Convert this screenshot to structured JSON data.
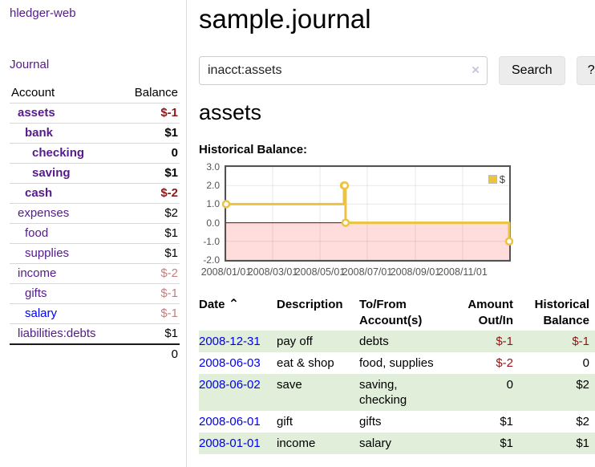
{
  "sidebar": {
    "brand": "hledger-web",
    "journal_link": "Journal",
    "accounts": {
      "col_account": "Account",
      "col_balance": "Balance",
      "rows": [
        {
          "name": "assets",
          "balance": "$-1",
          "level": 0,
          "bold": true,
          "neg": "strong"
        },
        {
          "name": "bank",
          "balance": "$1",
          "level": 1,
          "bold": true
        },
        {
          "name": "checking",
          "balance": "0",
          "level": 2,
          "bold": true
        },
        {
          "name": "saving",
          "balance": "$1",
          "level": 2,
          "bold": true
        },
        {
          "name": "cash",
          "balance": "$-2",
          "level": 1,
          "bold": true,
          "neg": "strong"
        },
        {
          "name": "expenses",
          "balance": "$2",
          "level": 0
        },
        {
          "name": "food",
          "balance": "$1",
          "level": 1
        },
        {
          "name": "supplies",
          "balance": "$1",
          "level": 1
        },
        {
          "name": "income",
          "balance": "$-2",
          "level": 0,
          "neg": "soft"
        },
        {
          "name": "gifts",
          "balance": "$-1",
          "level": 1,
          "neg": "soft"
        },
        {
          "name": "salary",
          "balance": "$-1",
          "level": 1,
          "neg": "soft",
          "link_state": "unvisited"
        },
        {
          "name": "liabilities:debts",
          "balance": "$1",
          "level": 0
        }
      ],
      "total": "0"
    }
  },
  "header": {
    "title": "sample.journal"
  },
  "search": {
    "value": "inacct:assets",
    "clear_icon": "×",
    "search_button": "Search",
    "help_button": "?"
  },
  "page": {
    "account_heading": "assets",
    "chart_title": "Historical Balance:"
  },
  "chart_data": {
    "type": "line",
    "style": "step",
    "title": "Historical Balance",
    "x_range": [
      "2008-01-01",
      "2008-12-31"
    ],
    "ylim": [
      -2.0,
      3.0
    ],
    "yticks": [
      3.0,
      2.0,
      1.0,
      0.0,
      -1.0,
      -2.0
    ],
    "xticks": [
      {
        "value": "2008-01-01",
        "label": "2008/01/01"
      },
      {
        "value": "2008-03-01",
        "label": "2008/03/01"
      },
      {
        "value": "2008-05-01",
        "label": "2008/05/01"
      },
      {
        "value": "2008-07-01",
        "label": "2008/07/01"
      },
      {
        "value": "2008-09-01",
        "label": "2008/09/01"
      },
      {
        "value": "2008-11-01",
        "label": "2008/11/01"
      }
    ],
    "series": [
      {
        "name": "$",
        "color": "#edc240",
        "points": [
          {
            "x": "2008-01-01",
            "y": 1.0
          },
          {
            "x": "2008-06-01",
            "y": 2.0
          },
          {
            "x": "2008-06-02",
            "y": 2.0
          },
          {
            "x": "2008-06-03",
            "y": 0.0
          },
          {
            "x": "2008-12-31",
            "y": -1.0
          }
        ]
      }
    ],
    "legend": {
      "label": "$",
      "position": "top-right"
    },
    "grid": true,
    "negative_region_color": "#ffdddd",
    "zero_line_color": "#8b0000"
  },
  "register": {
    "headers": {
      "date": "Date",
      "sort_icon": "⌃",
      "description": "Description",
      "accounts": "To/From Account(s)",
      "amount": "Amount Out/In",
      "balance": "Historical Balance"
    },
    "rows": [
      {
        "date": "2008-12-31",
        "description": "pay off",
        "accounts": "debts",
        "amount": "$-1",
        "amount_neg": true,
        "balance": "$-1",
        "balance_neg": true
      },
      {
        "date": "2008-06-03",
        "description": "eat & shop",
        "accounts": "food, supplies",
        "amount": "$-2",
        "amount_neg": true,
        "balance": "0"
      },
      {
        "date": "2008-06-02",
        "description": "save",
        "accounts": "saving, checking",
        "amount": "0",
        "balance": "$2"
      },
      {
        "date": "2008-06-01",
        "description": "gift",
        "accounts": "gifts",
        "amount": "$1",
        "balance": "$2"
      },
      {
        "date": "2008-01-01",
        "description": "income",
        "accounts": "salary",
        "amount": "$1",
        "balance": "$1"
      }
    ]
  },
  "colors": {
    "link_visited": "#551a8b",
    "link_unvisited": "#0000ee",
    "negative_strong": "#8e1717",
    "negative_soft": "#c08080",
    "row_stripe_green": "#e0eeda",
    "series_yellow": "#edc240",
    "chart_negative_bg": "#ffdddd",
    "zero_line": "#8b0000",
    "chart_border": "#545454"
  }
}
